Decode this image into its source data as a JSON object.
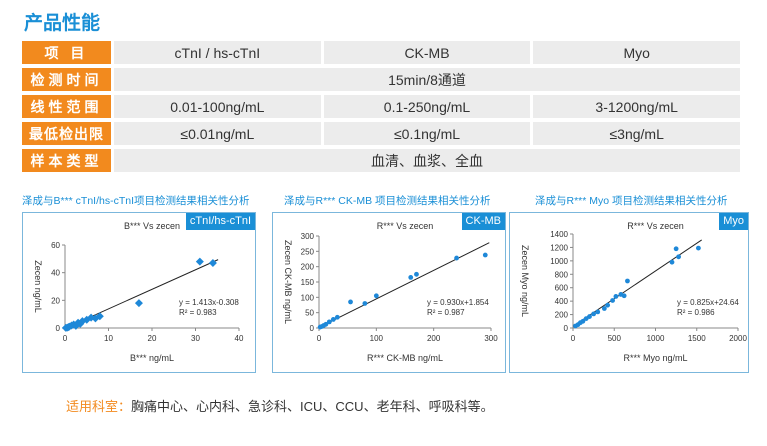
{
  "page": {
    "title": "产品性能"
  },
  "specs": {
    "rows": [
      {
        "header": "项 目",
        "cells": [
          "cTnI / hs-cTnI",
          "CK-MB",
          "Myo"
        ]
      },
      {
        "header": "检测时间",
        "cells": [
          "15min/8通道"
        ]
      },
      {
        "header": "线性范围",
        "cells": [
          "0.01-100ng/mL",
          "0.1-250ng/mL",
          "3-1200ng/mL"
        ]
      },
      {
        "header": "最低检出限",
        "cells": [
          "≤0.01ng/mL",
          "≤0.1ng/mL",
          "≤3ng/mL"
        ]
      },
      {
        "header": "样本类型",
        "cells": [
          "血清、血浆、全血"
        ]
      }
    ]
  },
  "charts_captions": [
    "泽成与B*** cTnI/hs-cTnI项目检测结果相关性分析",
    "泽成与R*** CK-MB 项目检测结果相关性分析",
    "泽成与R*** Myo 项目检测结果相关性分析"
  ],
  "chart_data": [
    {
      "type": "scatter",
      "badge": "cTnI/hs-cTnI",
      "title": "B*** Vs zecen",
      "xlabel": "B*** ng/mL",
      "ylabel": "Zecen ng/mL",
      "xlim": [
        0,
        40
      ],
      "ylim": [
        0,
        60
      ],
      "xticks": [
        "0",
        "10",
        "20",
        "30",
        "40"
      ],
      "yticks": [
        "0",
        "20",
        "40",
        "60"
      ],
      "color": "#1e88d8",
      "equation": "y = 1.413x-0.308",
      "r2": "R² = 0.983",
      "fit": {
        "slope": 1.413,
        "intercept": -0.308
      },
      "points": [
        [
          0.2,
          0.1
        ],
        [
          0.5,
          0.3
        ],
        [
          0.8,
          0.6
        ],
        [
          1,
          1
        ],
        [
          1.5,
          1.8
        ],
        [
          2,
          2.5
        ],
        [
          2.5,
          1.5
        ],
        [
          3,
          3.8
        ],
        [
          3.5,
          3
        ],
        [
          4,
          5
        ],
        [
          5,
          6
        ],
        [
          6,
          7.5
        ],
        [
          7,
          7
        ],
        [
          8,
          8.5
        ],
        [
          17,
          18
        ],
        [
          31,
          48
        ],
        [
          34,
          47
        ]
      ]
    },
    {
      "type": "scatter",
      "badge": "CK-MB",
      "title": "R*** Vs zecen",
      "xlabel": "R*** CK-MB ng/mL",
      "ylabel": "Zecen CK-MB ng/mL",
      "xlim": [
        0,
        300
      ],
      "ylim": [
        0,
        300
      ],
      "xticks": [
        "0",
        "100",
        "200",
        "300"
      ],
      "yticks": [
        "0",
        "50",
        "100",
        "150",
        "200",
        "250",
        "300"
      ],
      "color": "#1e88d8",
      "equation": "y = 0.930x+1.854",
      "r2": "R² = 0.987",
      "fit": {
        "slope": 0.93,
        "intercept": 1.854
      },
      "points": [
        [
          2,
          3
        ],
        [
          5,
          5
        ],
        [
          8,
          8
        ],
        [
          12,
          12
        ],
        [
          18,
          20
        ],
        [
          25,
          28
        ],
        [
          32,
          35
        ],
        [
          55,
          85
        ],
        [
          80,
          80
        ],
        [
          100,
          105
        ],
        [
          160,
          165
        ],
        [
          170,
          175
        ],
        [
          240,
          228
        ],
        [
          290,
          238
        ]
      ]
    },
    {
      "type": "scatter",
      "badge": "Myo",
      "title": "R*** Vs zecen",
      "xlabel": "R*** Myo  ng/mL",
      "ylabel": "Zecen Myo ng/mL",
      "xlim": [
        0,
        2000
      ],
      "ylim": [
        0,
        1400
      ],
      "xticks": [
        "0",
        "500",
        "1000",
        "1500",
        "2000"
      ],
      "yticks": [
        "0",
        "200",
        "400",
        "600",
        "800",
        "1000",
        "1200",
        "1400"
      ],
      "color": "#1e88d8",
      "equation": "y = 0.825x+24.64",
      "r2": "R² = 0.986",
      "fit": {
        "slope": 0.825,
        "intercept": 24.64
      },
      "points": [
        [
          30,
          30
        ],
        [
          60,
          50
        ],
        [
          90,
          80
        ],
        [
          120,
          100
        ],
        [
          160,
          140
        ],
        [
          200,
          170
        ],
        [
          250,
          210
        ],
        [
          300,
          240
        ],
        [
          380,
          290
        ],
        [
          420,
          340
        ],
        [
          480,
          410
        ],
        [
          520,
          470
        ],
        [
          580,
          500
        ],
        [
          620,
          480
        ],
        [
          660,
          700
        ],
        [
          1200,
          980
        ],
        [
          1250,
          1180
        ],
        [
          1280,
          1060
        ],
        [
          1520,
          1190
        ]
      ]
    }
  ],
  "footer": {
    "label": "适用科室：",
    "text": "胸痛中心、心内科、急诊科、ICU、CCU、老年科、呼吸科等。"
  }
}
